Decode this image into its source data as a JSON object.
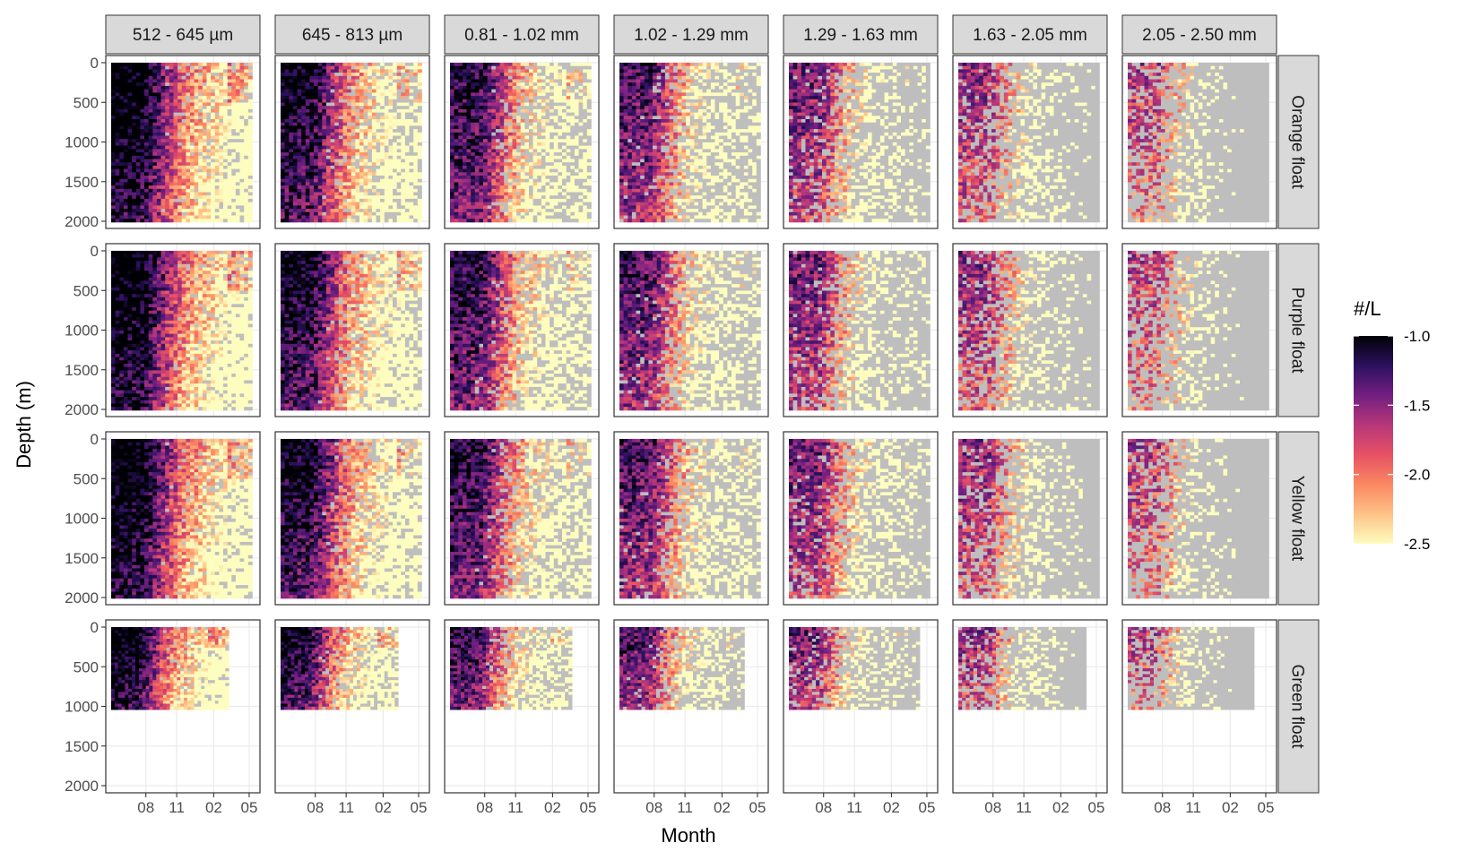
{
  "colors": {
    "na_cell": "#bebebe",
    "strip_fill": "#d9d9d9",
    "panel_border": "#333333",
    "grid": "#ebebeb",
    "scale_stops": [
      "#fcfdbf",
      "#fec287",
      "#fb8861",
      "#e65164",
      "#b73779",
      "#721f81",
      "#2c115f",
      "#000004"
    ]
  },
  "chart_data": {
    "type": "heatmap",
    "xlabel": "Month",
    "ylabel": "Depth (m)",
    "x_ticks": [
      "08",
      "11",
      "02",
      "05"
    ],
    "y_ticks": [
      "0",
      "500",
      "1000",
      "1500",
      "2000"
    ],
    "ylim": [
      2000,
      0
    ],
    "y_reversed": true,
    "size_classes": [
      "512 - 645 µm",
      "645 - 813 µm",
      "0.81 - 1.02 mm",
      "1.02 - 1.29 mm",
      "1.29 - 1.63 mm",
      "1.63 - 2.05 mm",
      "2.05 - 2.50 mm"
    ],
    "floats": [
      "Orange float",
      "Purple float",
      "Yellow float",
      "Green float"
    ],
    "float_max_depth_m": [
      2000,
      2000,
      2000,
      1000
    ],
    "legend": {
      "title": "#/L",
      "placement": "right",
      "scale": "magma (log10 concentration)",
      "range": [
        -2.5,
        -1.0
      ],
      "ticks": [
        "-1.0",
        "-1.5",
        "-2.0",
        "-2.5"
      ]
    },
    "grid": true
  }
}
